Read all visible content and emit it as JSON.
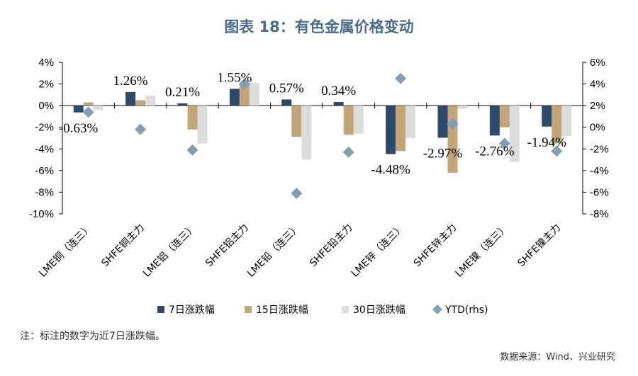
{
  "title": "图表 18：有色金属价格变动",
  "note": "注：标注的数字为近7日涨跌幅。",
  "source": "数据来源：Wind、兴业研究",
  "colors": {
    "d7": "#2e4a6b",
    "d15": "#c4a57a",
    "d30": "#dcdcdc",
    "ytd": "#7f9fb6"
  },
  "chart_data": {
    "type": "bar",
    "categories": [
      "LME铜（连三）",
      "SHFE铜主力",
      "LME铝（连三）",
      "SHFE铝主力",
      "LME铅（连三）",
      "SHFE铅主力",
      "LME锌（连三）",
      "SHFE锌主力",
      "LME镍（连三）",
      "SHFE镍主力"
    ],
    "series": [
      {
        "name": "7日涨跌幅",
        "axis": "left",
        "values": [
          -0.63,
          1.26,
          0.21,
          1.55,
          0.57,
          0.34,
          -4.48,
          -2.97,
          -2.76,
          -1.94
        ]
      },
      {
        "name": "15日涨跌幅",
        "axis": "left",
        "values": [
          0.3,
          0.5,
          -2.2,
          2.0,
          -2.9,
          -2.7,
          -4.2,
          -6.2,
          -2.0,
          -3.5
        ]
      },
      {
        "name": "30日涨跌幅",
        "axis": "left",
        "values": [
          -0.4,
          0.9,
          -3.5,
          2.1,
          -5.0,
          -2.6,
          -3.0,
          -0.3,
          -5.2,
          -2.8
        ]
      },
      {
        "name": "YTD(rhs)",
        "axis": "right",
        "type": "scatter",
        "values": [
          1.4,
          -0.2,
          -2.1,
          4.0,
          -6.1,
          -2.3,
          4.5,
          0.3,
          -1.5,
          -2.2
        ]
      }
    ],
    "data_labels": [
      "-0.63%",
      "1.26%",
      "0.21%",
      "1.55%",
      "0.57%",
      "0.34%",
      "-4.48%",
      "-2.97%",
      "-2.76%",
      "-1.94%"
    ],
    "ylim_left": [
      -10,
      4
    ],
    "yticks_left": [
      "4%",
      "2%",
      "0%",
      "-2%",
      "-4%",
      "-6%",
      "-8%",
      "-10%"
    ],
    "ylim_right": [
      -8,
      6
    ],
    "yticks_right": [
      "6%",
      "4%",
      "2%",
      "0%",
      "-2%",
      "-4%",
      "-6%",
      "-8%"
    ],
    "legend_position": "bottom",
    "grid": false
  }
}
